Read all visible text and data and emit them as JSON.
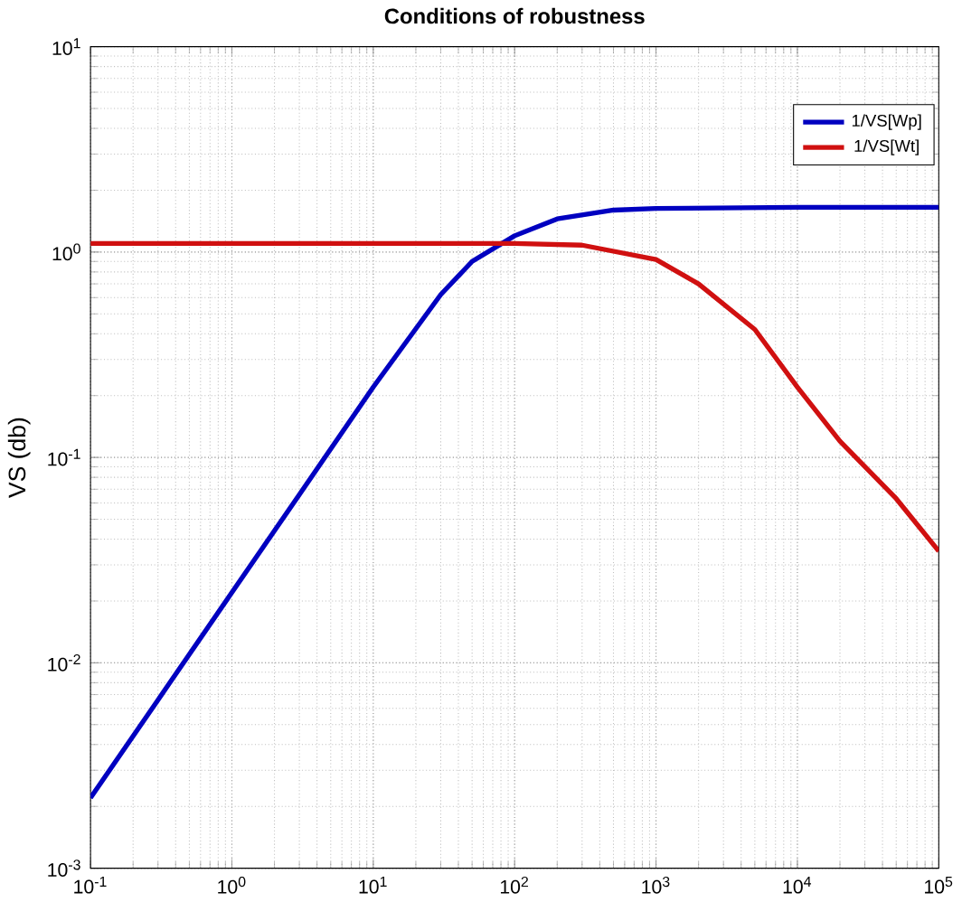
{
  "chart_data": {
    "type": "line",
    "title": "Conditions of robustness",
    "ylabel": "VS (db)",
    "log": "xy",
    "grid": true,
    "legend": "top right",
    "xlim": [
      0.1,
      100000
    ],
    "ylim": [
      0.001,
      10
    ],
    "xticks": [
      {
        "value": 0.1,
        "label": "10$^{-1}$"
      },
      {
        "value": 1,
        "label": "10$^{0}$"
      },
      {
        "value": 10,
        "label": "10$^{1}$"
      },
      {
        "value": 100,
        "label": "10$^{2}$"
      },
      {
        "value": 1000,
        "label": "10$^{3}$"
      },
      {
        "value": 10000,
        "label": "10$^{4}$"
      },
      {
        "value": 100000,
        "label": "10$^{5}$"
      }
    ],
    "yticks": [
      {
        "value": 0.001,
        "label": "10$^{-3}$"
      },
      {
        "value": 0.01,
        "label": "10$^{-2}$"
      },
      {
        "value": 0.1,
        "label": "10$^{-1}$"
      },
      {
        "value": 1,
        "label": "10$^{0}$"
      },
      {
        "value": 10,
        "label": "10$^{1}$"
      }
    ],
    "series": [
      {
        "name": "1/VS[Wp]",
        "color": "#0000c0",
        "x": [
          0.1,
          0.3,
          1,
          3,
          10,
          30,
          50,
          100,
          200,
          500,
          1000,
          10000,
          100000
        ],
        "values": [
          0.0022,
          0.0066,
          0.022,
          0.066,
          0.22,
          0.62,
          0.9,
          1.2,
          1.45,
          1.6,
          1.63,
          1.65,
          1.65
        ]
      },
      {
        "name": "1/VS[Wt]",
        "color": "#d01010",
        "x": [
          0.1,
          1,
          10,
          100,
          300,
          1000,
          2000,
          5000,
          10000,
          20000,
          50000,
          100000
        ],
        "values": [
          1.1,
          1.1,
          1.1,
          1.1,
          1.08,
          0.92,
          0.7,
          0.42,
          0.22,
          0.12,
          0.063,
          0.035
        ]
      }
    ]
  }
}
